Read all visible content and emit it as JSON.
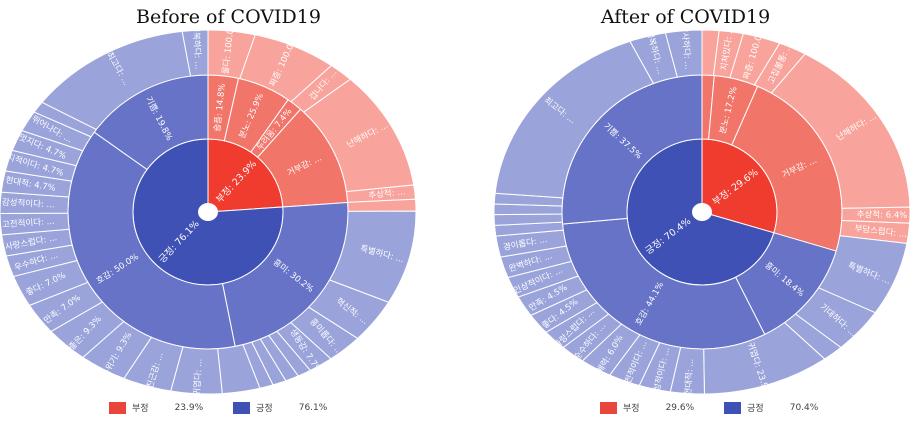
{
  "colors": {
    "neg": "#e8453c",
    "pos": "#3f51b5",
    "ring_lines": "#ffffff"
  },
  "chart_data": [
    {
      "type": "sunburst",
      "title": "Before of COVID19",
      "legend": [
        {
          "name": "부정",
          "value": 23.9,
          "label": "23.9%"
        },
        {
          "name": "긍정",
          "value": 76.1,
          "label": "76.1%"
        }
      ],
      "inner": [
        {
          "name": "부정",
          "value": 23.9,
          "label": "부정: 23.9%",
          "group": "neg"
        },
        {
          "name": "긍정",
          "value": 76.1,
          "label": "긍정: 76.1%",
          "group": "pos"
        }
      ],
      "middle": [
        {
          "name": "슬픔",
          "value": 3.5,
          "label": "슬픔: 14.8%",
          "group": "neg"
        },
        {
          "name": "분노",
          "value": 6.2,
          "label": "분노: 25.9%",
          "group": "neg"
        },
        {
          "name": "두려움",
          "value": 1.8,
          "label": "두려움: 7.4%",
          "group": "neg"
        },
        {
          "name": "거부감",
          "value": 12.4,
          "label": "거부감: ...",
          "group": "neg"
        },
        {
          "name": "흥미",
          "value": 23.0,
          "label": "흥미: 30.2%",
          "group": "pos"
        },
        {
          "name": "호감",
          "value": 38.0,
          "label": "호감: 50.0%",
          "group": "pos"
        },
        {
          "name": "기쁨",
          "value": 15.1,
          "label": "기쁨: 19.8%",
          "group": "pos"
        }
      ],
      "outer": [
        {
          "name": "울다",
          "value": 3.5,
          "label": "울다: 100.0%",
          "group": "neg"
        },
        {
          "name": "짜증",
          "value": 6.2,
          "label": "짜증: 100.0%",
          "group": "neg"
        },
        {
          "name": "겁나다",
          "value": 1.8,
          "label": "겁나다: ...",
          "group": "neg"
        },
        {
          "name": "난해하다",
          "value": 10.2,
          "label": "난해하다: ...",
          "group": "neg"
        },
        {
          "name": "추상적",
          "value": 1.2,
          "label": "추상적: ...",
          "group": "neg"
        },
        {
          "name": "(기타)",
          "value": 1.0,
          "label": "",
          "group": "neg"
        },
        {
          "name": "특별하다",
          "value": 8.0,
          "label": "특별하다: ...",
          "group": "pos"
        },
        {
          "name": "혁신적",
          "value": 3.8,
          "label": "혁신적: ...",
          "group": "pos"
        },
        {
          "name": "흥미롭다",
          "value": 2.6,
          "label": "흥미롭다: ...",
          "group": "pos"
        },
        {
          "name": "생동감",
          "value": 1.8,
          "label": "생동감: 7.7%",
          "group": "pos"
        },
        {
          "name": "(기타)",
          "value": 1.0,
          "label": "",
          "group": "pos"
        },
        {
          "name": "(기타)",
          "value": 1.0,
          "label": "",
          "group": "pos"
        },
        {
          "name": "(기타)",
          "value": 1.0,
          "label": "",
          "group": "pos"
        },
        {
          "name": "(기타)",
          "value": 1.0,
          "label": "",
          "group": "pos"
        },
        {
          "name": "(기타)",
          "value": 2.8,
          "label": "",
          "group": "pos"
        },
        {
          "name": "귀엽다",
          "value": 3.8,
          "label": "귀엽다: ...",
          "group": "pos"
        },
        {
          "name": "친근감",
          "value": 3.6,
          "label": "친근감: ...",
          "group": "pos"
        },
        {
          "name": "분위기",
          "value": 3.5,
          "label": "분위기: 9.3%",
          "group": "pos"
        },
        {
          "name": "좋은",
          "value": 3.2,
          "label": "좋은: 9.3%",
          "group": "pos"
        },
        {
          "name": "만족",
          "value": 2.7,
          "label": "만족: 7.0%",
          "group": "pos"
        },
        {
          "name": "좋다",
          "value": 2.7,
          "label": "좋다: 7.0%",
          "group": "pos"
        },
        {
          "name": "우수하다",
          "value": 1.8,
          "label": "우수하다: ...",
          "group": "pos"
        },
        {
          "name": "사랑스럽다",
          "value": 1.8,
          "label": "사랑스럽다: ...",
          "group": "pos"
        },
        {
          "name": "고전적이다",
          "value": 1.8,
          "label": "고전적이다: ...",
          "group": "pos"
        },
        {
          "name": "감성적이다",
          "value": 1.8,
          "label": "감성적이다: ...",
          "group": "pos"
        },
        {
          "name": "현대적",
          "value": 1.8,
          "label": "현대적: 4.7%",
          "group": "pos"
        },
        {
          "name": "지적이다",
          "value": 1.8,
          "label": "지적이다: 4.7%",
          "group": "pos"
        },
        {
          "name": "멋지다",
          "value": 1.8,
          "label": "멋지다: 4.7%",
          "group": "pos"
        },
        {
          "name": "뛰어나다",
          "value": 1.8,
          "label": "뛰어나다: ...",
          "group": "pos"
        },
        {
          "name": "(기타)",
          "value": 1.0,
          "label": "",
          "group": "pos"
        },
        {
          "name": "최고다",
          "value": 12.2,
          "label": "최고다: ...",
          "group": "pos"
        },
        {
          "name": "행복하다",
          "value": 1.9,
          "label": "행복하다: ...",
          "group": "pos"
        }
      ]
    },
    {
      "type": "sunburst",
      "title": "After of COVID19",
      "legend": [
        {
          "name": "부정",
          "value": 29.6,
          "label": "29.6%"
        },
        {
          "name": "긍정",
          "value": 70.4,
          "label": "70.4%"
        }
      ],
      "inner": [
        {
          "name": "부정",
          "value": 29.6,
          "label": "부정: 29.6%",
          "group": "neg"
        },
        {
          "name": "긍정",
          "value": 70.4,
          "label": "긍정: 70.4%",
          "group": "pos"
        }
      ],
      "middle": [
        {
          "name": "(기타)",
          "value": 1.4,
          "label": "",
          "group": "neg"
        },
        {
          "name": "분노",
          "value": 5.1,
          "label": "분노: 17.2%",
          "group": "neg"
        },
        {
          "name": "거부감",
          "value": 23.1,
          "label": "거부감: ...",
          "group": "neg"
        },
        {
          "name": "흥미",
          "value": 13.0,
          "label": "흥미: 18.4%",
          "group": "pos"
        },
        {
          "name": "호감",
          "value": 31.0,
          "label": "호감: 44.1%",
          "group": "pos"
        },
        {
          "name": "기쁨",
          "value": 26.4,
          "label": "기쁨: 37.5%",
          "group": "pos"
        }
      ],
      "outer": [
        {
          "name": "(기타)",
          "value": 1.4,
          "label": "",
          "group": "neg"
        },
        {
          "name": "지쳐있다",
          "value": 2.0,
          "label": "지쳐있다: ...",
          "group": "neg"
        },
        {
          "name": "짜증",
          "value": 3.1,
          "label": "짜증: 100.0%",
          "group": "neg"
        },
        {
          "name": "고집불통",
          "value": 2.3,
          "label": "고집불통: ...",
          "group": "neg"
        },
        {
          "name": "난해하다",
          "value": 17.4,
          "label": "난해하다: ...",
          "group": "neg"
        },
        {
          "name": "추상적",
          "value": 1.5,
          "label": "추상적: 6.4%",
          "group": "neg"
        },
        {
          "name": "부담스럽다",
          "value": 1.9,
          "label": "부담스럽다: ...",
          "group": "neg"
        },
        {
          "name": "특별하다",
          "value": 7.0,
          "label": "특별하다: ...",
          "group": "pos"
        },
        {
          "name": "기대하다",
          "value": 4.3,
          "label": "기대하다: ...",
          "group": "pos"
        },
        {
          "name": "(기타)",
          "value": 1.7,
          "label": "",
          "group": "pos"
        },
        {
          "name": "귀엽다",
          "value": 10.5,
          "label": "귀엽다: 23.9%",
          "group": "pos"
        },
        {
          "name": "현대적",
          "value": 2.8,
          "label": "현대적: ...",
          "group": "pos"
        },
        {
          "name": "감성적이다",
          "value": 2.6,
          "label": "감성적이다: ...",
          "group": "pos"
        },
        {
          "name": "고전적이다",
          "value": 2.6,
          "label": "고전적이다: ...",
          "group": "pos"
        },
        {
          "name": "매력",
          "value": 2.6,
          "label": "매력: 6.0%",
          "group": "pos"
        },
        {
          "name": "순수하다",
          "value": 2.0,
          "label": "순수하다: ...",
          "group": "pos"
        },
        {
          "name": "사랑스럽다",
          "value": 2.0,
          "label": "사랑스럽다: ...",
          "group": "pos"
        },
        {
          "name": "좋다",
          "value": 2.0,
          "label": "좋다: 4.5%",
          "group": "pos"
        },
        {
          "name": "만족",
          "value": 2.0,
          "label": "만족: 4.5%",
          "group": "pos"
        },
        {
          "name": "인상적이다",
          "value": 2.0,
          "label": "인상적이다: ...",
          "group": "pos"
        },
        {
          "name": "완벽하다",
          "value": 2.0,
          "label": "완벽하다: ...",
          "group": "pos"
        },
        {
          "name": "경이롭다",
          "value": 2.0,
          "label": "경이롭다: ...",
          "group": "pos"
        },
        {
          "name": "(기타)",
          "value": 1.0,
          "label": "",
          "group": "pos"
        },
        {
          "name": "(기타)",
          "value": 1.0,
          "label": "",
          "group": "pos"
        },
        {
          "name": "(기타)",
          "value": 1.0,
          "label": "",
          "group": "pos"
        },
        {
          "name": "(기타)",
          "value": 1.0,
          "label": "",
          "group": "pos"
        },
        {
          "name": "최고다",
          "value": 18.9,
          "label": "최고다: ...",
          "group": "pos"
        },
        {
          "name": "행복하다",
          "value": 3.0,
          "label": "행복하다: ...",
          "group": "pos"
        },
        {
          "name": "감사하다",
          "value": 3.0,
          "label": "감사하다: ...",
          "group": "pos"
        }
      ]
    }
  ]
}
